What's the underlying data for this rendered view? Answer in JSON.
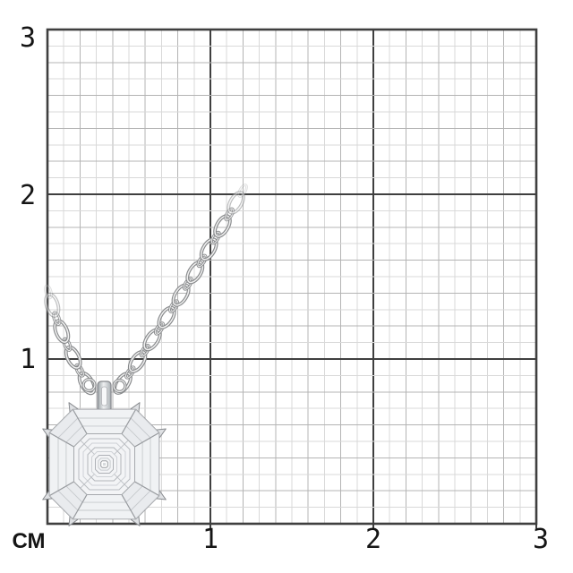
{
  "page": {
    "background": "#ffffff"
  },
  "scene": {
    "subject": "diamond-cluster-pendant-necklace-on-mm-scale-grid"
  },
  "ruler": {
    "unit_label": "СМ",
    "x_ticks": [
      "1",
      "2",
      "3"
    ],
    "y_ticks_top_down": [
      "3",
      "2",
      "1"
    ]
  },
  "colors": {
    "grid_major": "#3f3f3f",
    "grid_mid": "#b4b4b4",
    "grid_minor": "#d9d9d9",
    "label_text": "#151515",
    "chain_dark": "#888a8c",
    "chain_light": "#f0f0f0",
    "pendant_fill": "#f2f3f5",
    "pendant_edge": "#8f9195",
    "facet_line": "#c6c9cd",
    "separator_line": "#989b9f",
    "prong_fill": "#dfe1e4",
    "prong_edge": "#898c90"
  }
}
